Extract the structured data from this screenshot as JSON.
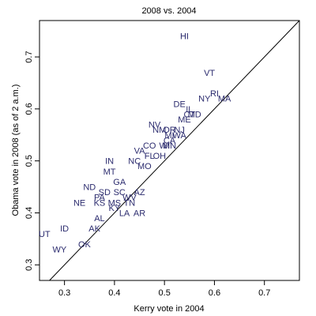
{
  "chart_data": {
    "type": "scatter",
    "title": "2008 vs. 2004",
    "xlabel": "Kerry vote in 2004",
    "ylabel": "Obama vote in 2008 (as of 2 a.m.)",
    "xlim": [
      0.25,
      0.77
    ],
    "ylim": [
      0.27,
      0.77
    ],
    "x_ticks": [
      0.3,
      0.4,
      0.5,
      0.6,
      0.7
    ],
    "y_ticks": [
      0.3,
      0.4,
      0.5,
      0.6,
      0.7
    ],
    "x_tick_labels": [
      "0.3",
      "0.4",
      "0.5",
      "0.6",
      "0.7"
    ],
    "y_tick_labels": [
      "0.3",
      "0.4",
      "0.5",
      "0.6",
      "0.7"
    ],
    "reference_line": "y = x",
    "grid": false,
    "points": [
      {
        "label": "HI",
        "x": 0.54,
        "y": 0.74
      },
      {
        "label": "VT",
        "x": 0.59,
        "y": 0.67
      },
      {
        "label": "RI",
        "x": 0.6,
        "y": 0.63
      },
      {
        "label": "MA",
        "x": 0.62,
        "y": 0.62
      },
      {
        "label": "NY",
        "x": 0.58,
        "y": 0.62
      },
      {
        "label": "DE",
        "x": 0.53,
        "y": 0.61
      },
      {
        "label": "IL",
        "x": 0.55,
        "y": 0.6
      },
      {
        "label": "CT",
        "x": 0.55,
        "y": 0.59
      },
      {
        "label": "MD",
        "x": 0.56,
        "y": 0.59
      },
      {
        "label": "ME",
        "x": 0.54,
        "y": 0.58
      },
      {
        "label": "NV",
        "x": 0.48,
        "y": 0.57
      },
      {
        "label": "NM",
        "x": 0.49,
        "y": 0.56
      },
      {
        "label": "OR",
        "x": 0.51,
        "y": 0.56
      },
      {
        "label": "NJ",
        "x": 0.53,
        "y": 0.56
      },
      {
        "label": "WA",
        "x": 0.53,
        "y": 0.55
      },
      {
        "label": "MI",
        "x": 0.51,
        "y": 0.55
      },
      {
        "label": "CA",
        "x": 0.51,
        "y": 0.54
      },
      {
        "label": "WI",
        "x": 0.5,
        "y": 0.53
      },
      {
        "label": "MN",
        "x": 0.51,
        "y": 0.53
      },
      {
        "label": "CO",
        "x": 0.47,
        "y": 0.53
      },
      {
        "label": "VA",
        "x": 0.45,
        "y": 0.52
      },
      {
        "label": "OH",
        "x": 0.49,
        "y": 0.51
      },
      {
        "label": "IN",
        "x": 0.39,
        "y": 0.5
      },
      {
        "label": "NC",
        "x": 0.44,
        "y": 0.5
      },
      {
        "label": "FL",
        "x": 0.47,
        "y": 0.51
      },
      {
        "label": "MO",
        "x": 0.46,
        "y": 0.49
      },
      {
        "label": "MT",
        "x": 0.39,
        "y": 0.48
      },
      {
        "label": "GA",
        "x": 0.41,
        "y": 0.46
      },
      {
        "label": "ND",
        "x": 0.35,
        "y": 0.45
      },
      {
        "label": "SD",
        "x": 0.38,
        "y": 0.44
      },
      {
        "label": "SC",
        "x": 0.41,
        "y": 0.44
      },
      {
        "label": "AZ",
        "x": 0.45,
        "y": 0.44
      },
      {
        "label": "PA",
        "x": 0.37,
        "y": 0.43
      },
      {
        "label": "WV",
        "x": 0.43,
        "y": 0.43
      },
      {
        "label": "KS",
        "x": 0.37,
        "y": 0.42
      },
      {
        "label": "MS",
        "x": 0.4,
        "y": 0.42
      },
      {
        "label": "TN",
        "x": 0.43,
        "y": 0.42
      },
      {
        "label": "NE",
        "x": 0.33,
        "y": 0.42
      },
      {
        "label": "KY",
        "x": 0.4,
        "y": 0.41
      },
      {
        "label": "LA",
        "x": 0.42,
        "y": 0.4
      },
      {
        "label": "AR",
        "x": 0.45,
        "y": 0.4
      },
      {
        "label": "AL",
        "x": 0.37,
        "y": 0.39
      },
      {
        "label": "ID",
        "x": 0.3,
        "y": 0.37
      },
      {
        "label": "AK",
        "x": 0.36,
        "y": 0.37
      },
      {
        "label": "UT",
        "x": 0.26,
        "y": 0.36
      },
      {
        "label": "WY",
        "x": 0.29,
        "y": 0.33
      },
      {
        "label": "OK",
        "x": 0.34,
        "y": 0.34
      }
    ]
  }
}
